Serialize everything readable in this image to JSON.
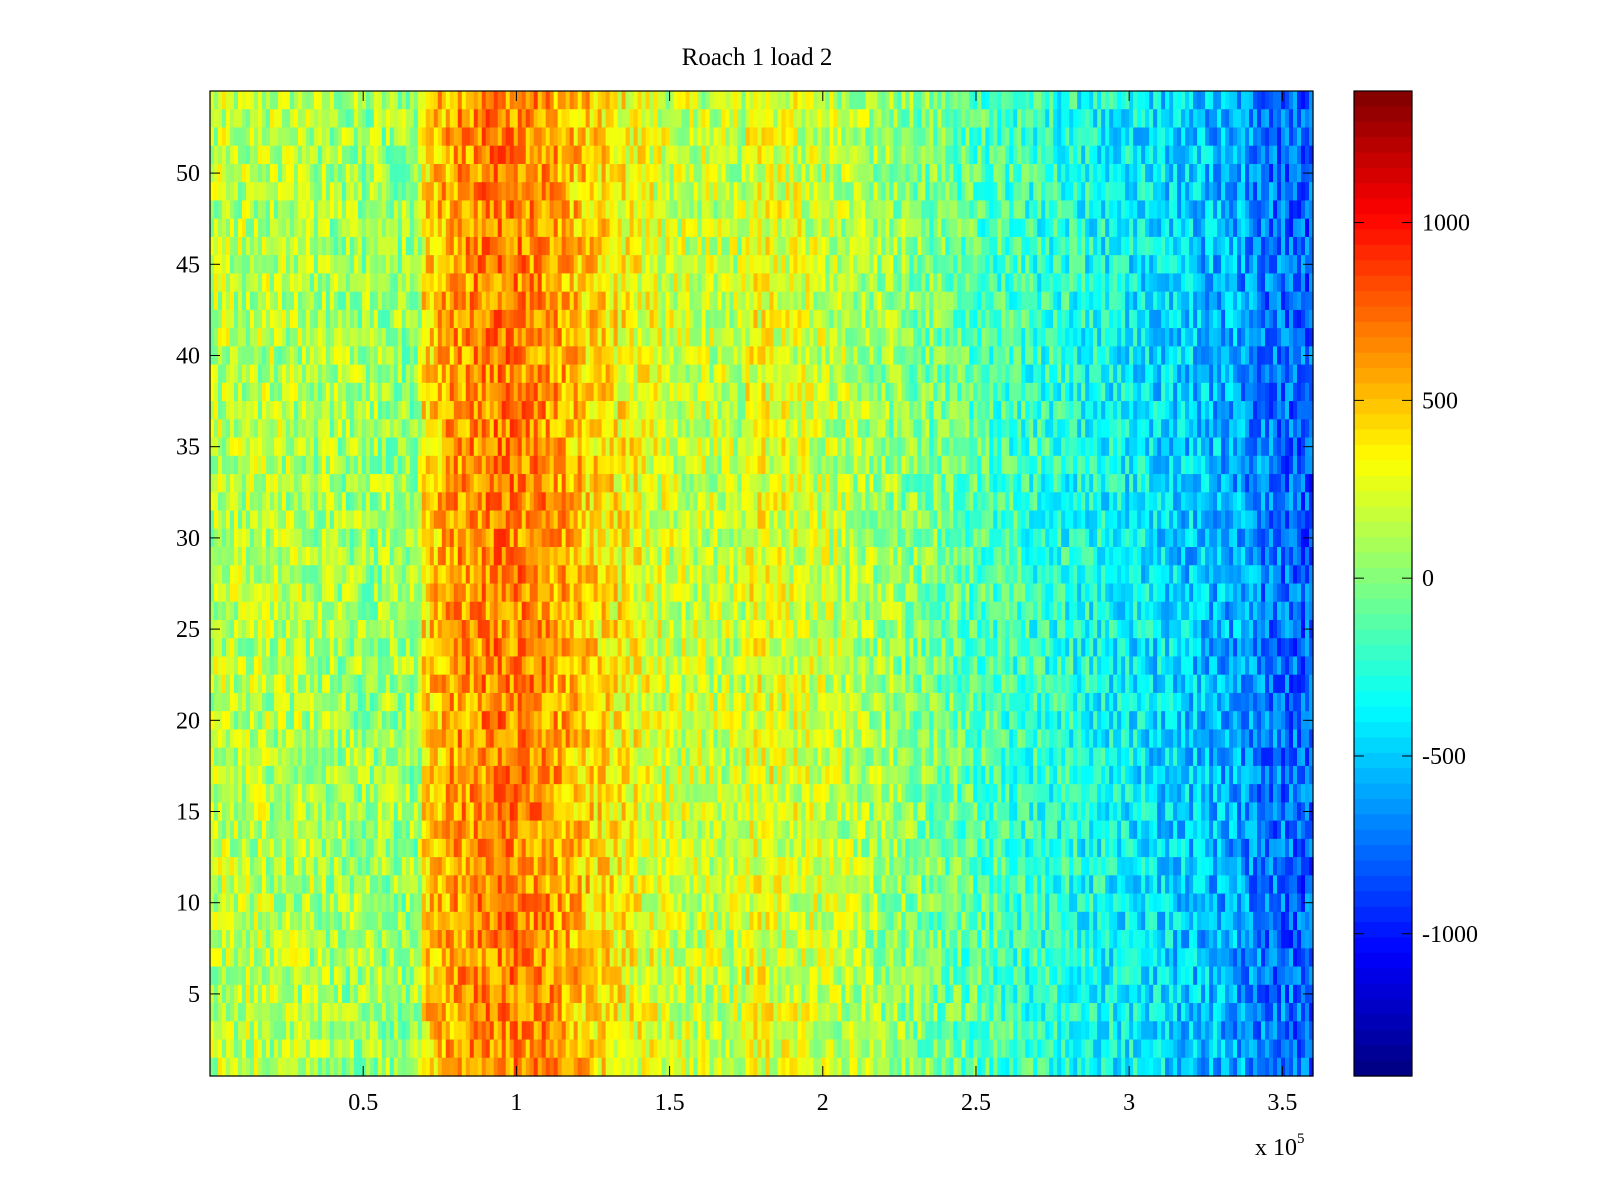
{
  "chart_data": {
    "type": "heatmap",
    "title": "Roach 1 load 2",
    "xlabel": "",
    "ylabel": "",
    "x_exponent_label": "x 10",
    "x_exponent": "5",
    "xlim": [
      0,
      3.6
    ],
    "ylim": [
      0.5,
      54.5
    ],
    "x_ticks": [
      {
        "value": 0.5,
        "label": "0.5"
      },
      {
        "value": 1,
        "label": "1"
      },
      {
        "value": 1.5,
        "label": "1.5"
      },
      {
        "value": 2,
        "label": "2"
      },
      {
        "value": 2.5,
        "label": "2.5"
      },
      {
        "value": 3,
        "label": "3"
      },
      {
        "value": 3.5,
        "label": "3.5"
      }
    ],
    "y_ticks": [
      {
        "value": 5,
        "label": "5"
      },
      {
        "value": 10,
        "label": "10"
      },
      {
        "value": 15,
        "label": "15"
      },
      {
        "value": 20,
        "label": "20"
      },
      {
        "value": 25,
        "label": "25"
      },
      {
        "value": 30,
        "label": "30"
      },
      {
        "value": 35,
        "label": "35"
      },
      {
        "value": 40,
        "label": "40"
      },
      {
        "value": 45,
        "label": "45"
      },
      {
        "value": 50,
        "label": "50"
      }
    ],
    "rows": 54,
    "colormap": "jet",
    "clim": [
      -1400,
      1370
    ],
    "colorbar_ticks": [
      {
        "value": 1000,
        "label": "1000"
      },
      {
        "value": 500,
        "label": "500"
      },
      {
        "value": 0,
        "label": "0"
      },
      {
        "value": -500,
        "label": "-500"
      },
      {
        "value": -1000,
        "label": "-1000"
      }
    ],
    "column_profile": {
      "x": [
        0,
        0.3,
        0.5,
        0.68,
        0.7,
        0.8,
        0.95,
        1.1,
        1.25,
        1.5,
        1.74,
        1.76,
        2.0,
        2.3,
        2.6,
        2.9,
        3.1,
        3.3,
        3.45,
        3.6
      ],
      "mean": [
        150,
        120,
        60,
        50,
        420,
        600,
        680,
        620,
        430,
        200,
        150,
        300,
        180,
        0,
        -180,
        -320,
        -430,
        -560,
        -720,
        -800
      ]
    },
    "grid": false,
    "colorbar_placement": "right"
  }
}
